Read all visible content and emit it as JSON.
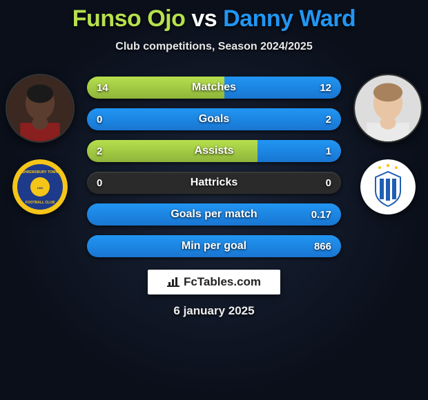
{
  "title": {
    "player1": "Funso Ojo",
    "vs": "vs",
    "player2": "Danny Ward"
  },
  "subtitle": "Club competitions, Season 2024/2025",
  "colors": {
    "p1": "#b6e04d",
    "p1_dark": "#8fb53a",
    "p2": "#2196f3",
    "p2_dark": "#1976d2",
    "bar_bg": "#2a2a2a",
    "avatar1_bg": "#5a3d2e",
    "avatar2_bg": "#d4b89a",
    "crest1_bg": "#1e3a8a",
    "crest1_ring": "#f5c518",
    "crest2_bg": "#ffffff",
    "crest2_stripe": "#1e5fb3"
  },
  "stats": [
    {
      "label": "Matches",
      "v1": "14",
      "v2": "12",
      "p1_pct": 54,
      "p2_pct": 46
    },
    {
      "label": "Goals",
      "v1": "0",
      "v2": "2",
      "p1_pct": 0,
      "p2_pct": 100
    },
    {
      "label": "Assists",
      "v1": "2",
      "v2": "1",
      "p1_pct": 67,
      "p2_pct": 33
    },
    {
      "label": "Hattricks",
      "v1": "0",
      "v2": "0",
      "p1_pct": 0,
      "p2_pct": 0
    },
    {
      "label": "Goals per match",
      "v1": "",
      "v2": "0.17",
      "p1_pct": 0,
      "p2_pct": 100
    },
    {
      "label": "Min per goal",
      "v1": "",
      "v2": "866",
      "p1_pct": 0,
      "p2_pct": 100
    }
  ],
  "footer": {
    "brand": "FcTables.com",
    "date": "6 january 2025"
  }
}
